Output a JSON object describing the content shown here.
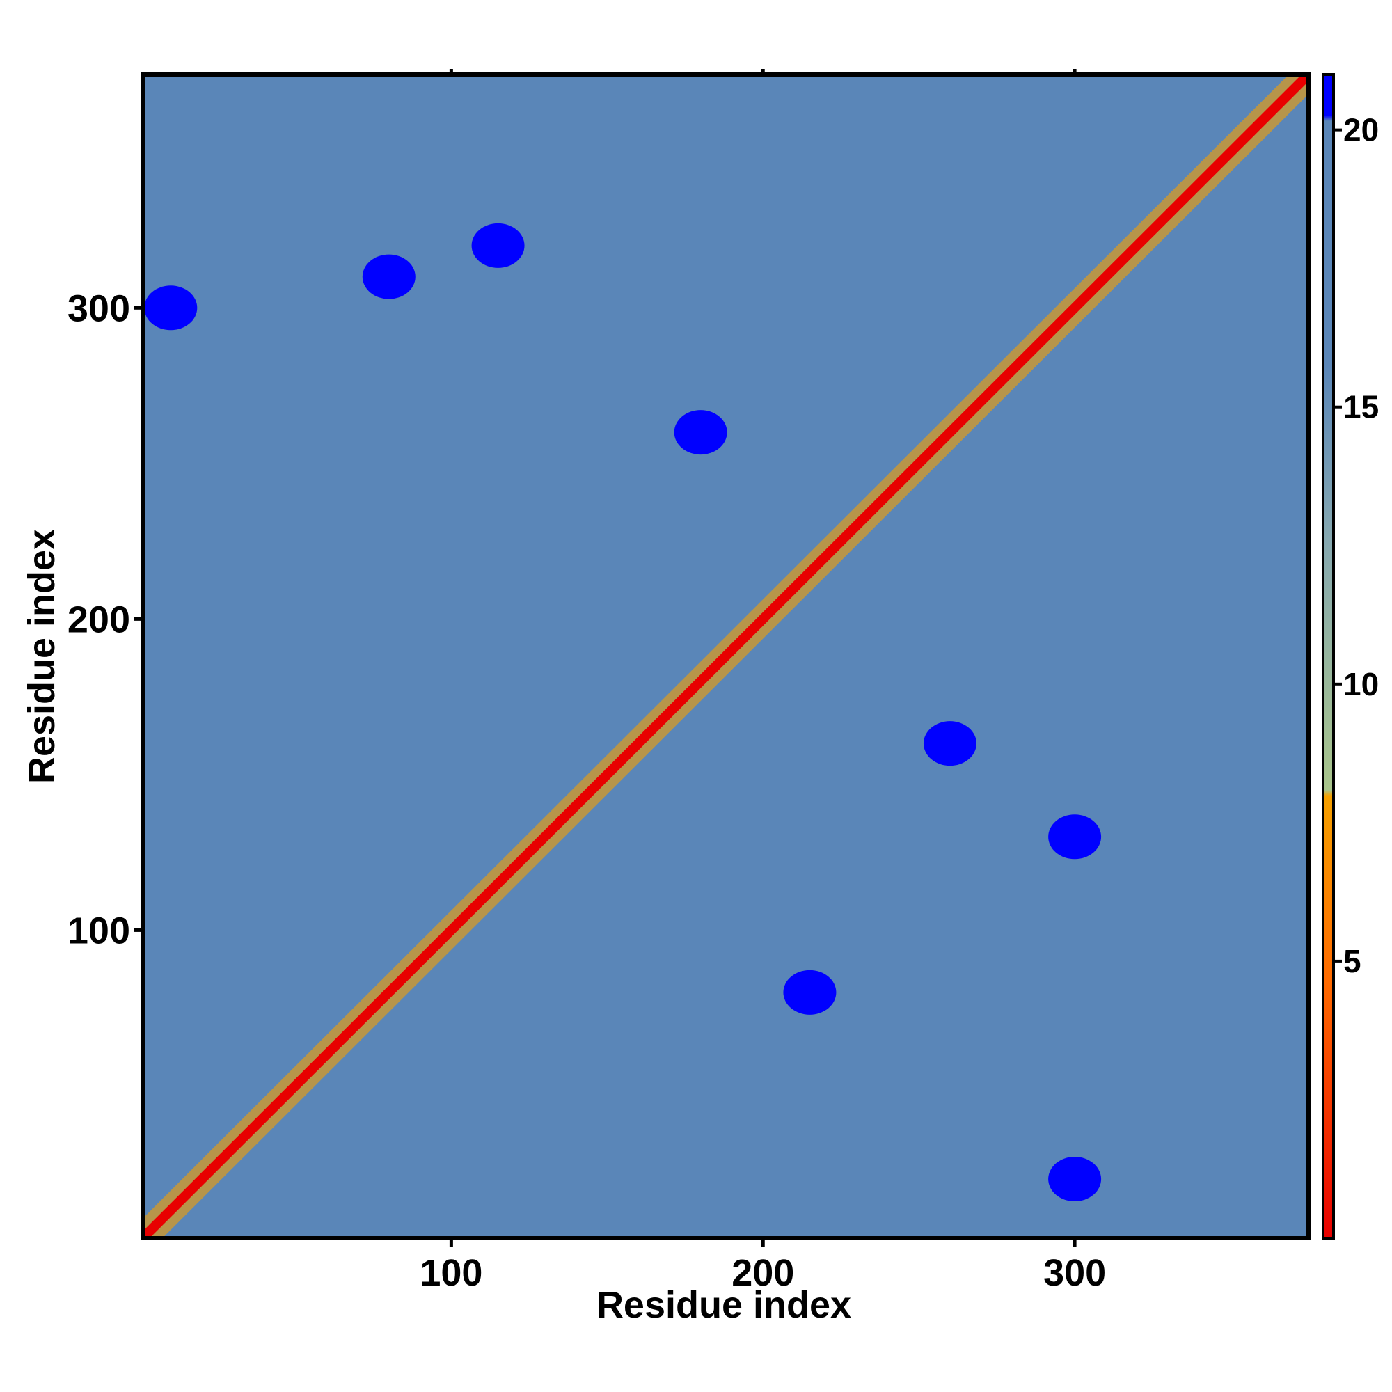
{
  "chart_data": {
    "type": "heatmap",
    "title": "",
    "xlabel": "Residue index",
    "ylabel": "Residue index",
    "xlim": [
      1,
      375
    ],
    "ylim": [
      1,
      375
    ],
    "x_ticks": [
      100,
      200,
      300
    ],
    "y_ticks": [
      100,
      200,
      300
    ],
    "colorbar": {
      "ticks": [
        5,
        10,
        15,
        20
      ],
      "range": [
        0,
        21
      ],
      "label": "",
      "colors": {
        "low": "#e80000",
        "mid_low": "#ff7a00",
        "mid": "#f0a000",
        "mid_high": "#a8c48a",
        "high": "#5a86b8",
        "cap": "#0000ff"
      }
    },
    "grid": false,
    "legend": "colorbar-right",
    "values_description_diagonal": 0,
    "features": [
      {
        "kind": "diagonal",
        "from": [
          1,
          1
        ],
        "to": [
          375,
          375
        ],
        "value": 0
      },
      {
        "kind": "blob",
        "x": 115,
        "y": 320,
        "value": 21
      },
      {
        "kind": "blob",
        "x": 80,
        "y": 310,
        "value": 21
      },
      {
        "kind": "blob",
        "x": 300,
        "y": 130,
        "value": 21
      },
      {
        "kind": "blob",
        "x": 260,
        "y": 160,
        "value": 21
      },
      {
        "kind": "blob",
        "x": 180,
        "y": 260,
        "value": 21
      },
      {
        "kind": "blob",
        "x": 215,
        "y": 80,
        "value": 21
      },
      {
        "kind": "blob",
        "x": 300,
        "y": 20,
        "value": 21
      },
      {
        "kind": "blob",
        "x": 10,
        "y": 300,
        "value": 21
      }
    ]
  }
}
